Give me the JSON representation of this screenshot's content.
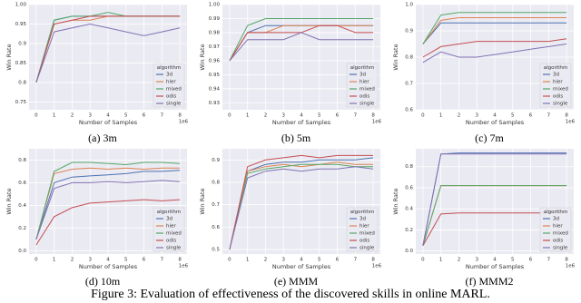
{
  "caption": "Figure 3: Evaluation of effectiveness of the discovered skills in online MARL.",
  "chart_data": [
    {
      "type": "line",
      "caption": "(a) 3m",
      "ylabel": "Win Rate",
      "xlabel": "Number of Samples",
      "x_offset": "1e6",
      "legend_title": "algorithm",
      "grid": true,
      "x": [
        0,
        1,
        2,
        3,
        4,
        5,
        6,
        7,
        8
      ],
      "xlim": [
        -0.4,
        8.4
      ],
      "xticks": [
        0,
        1,
        2,
        3,
        4,
        5,
        6,
        7,
        8
      ],
      "ylim": [
        0.73,
        1.0
      ],
      "yticks": [
        0.75,
        0.8,
        0.85,
        0.9,
        0.95,
        {
          "value": 1.0,
          "label": "1.00"
        }
      ],
      "series": [
        {
          "name": "3d",
          "color": "#4c72b0",
          "values": [
            0.8,
            0.96,
            0.97,
            0.97,
            0.97,
            0.97,
            0.97,
            0.97,
            0.97
          ]
        },
        {
          "name": "hier",
          "color": "#dd8452",
          "values": [
            0.8,
            0.95,
            0.96,
            0.96,
            0.97,
            0.97,
            0.97,
            0.97,
            0.97
          ]
        },
        {
          "name": "mixed",
          "color": "#55a868",
          "values": [
            0.8,
            0.96,
            0.97,
            0.97,
            0.98,
            0.97,
            0.97,
            0.97,
            0.97
          ]
        },
        {
          "name": "odis",
          "color": "#c44e52",
          "values": [
            0.8,
            0.95,
            0.96,
            0.97,
            0.97,
            0.97,
            0.97,
            0.97,
            0.97
          ]
        },
        {
          "name": "single",
          "color": "#8172b3",
          "values": [
            0.8,
            0.93,
            0.94,
            0.95,
            0.94,
            0.93,
            0.92,
            0.93,
            0.94
          ]
        }
      ]
    },
    {
      "type": "line",
      "caption": "(b) 5m",
      "ylabel": "Win Rate",
      "xlabel": "Number of Samples",
      "x_offset": "1e6",
      "legend_title": "algorithm",
      "grid": true,
      "x": [
        0,
        1,
        2,
        3,
        4,
        5,
        6,
        7,
        8
      ],
      "xlim": [
        -0.4,
        8.4
      ],
      "xticks": [
        0,
        1,
        2,
        3,
        4,
        5,
        6,
        7,
        8
      ],
      "ylim": [
        0.925,
        1.0
      ],
      "yticks": [
        0.93,
        0.94,
        0.95,
        0.96,
        0.97,
        0.98,
        0.99,
        {
          "value": 1.0,
          "label": "1.00"
        }
      ],
      "series": [
        {
          "name": "3d",
          "color": "#4c72b0",
          "values": [
            0.96,
            0.98,
            0.985,
            0.985,
            0.985,
            0.985,
            0.985,
            0.985,
            0.985
          ]
        },
        {
          "name": "hier",
          "color": "#dd8452",
          "values": [
            0.96,
            0.98,
            0.98,
            0.985,
            0.985,
            0.985,
            0.985,
            0.985,
            0.985
          ]
        },
        {
          "name": "mixed",
          "color": "#55a868",
          "values": [
            0.96,
            0.985,
            0.99,
            0.99,
            0.99,
            0.99,
            0.99,
            0.99,
            0.99
          ]
        },
        {
          "name": "odis",
          "color": "#c44e52",
          "values": [
            0.96,
            0.98,
            0.98,
            0.98,
            0.98,
            0.985,
            0.985,
            0.98,
            0.98
          ]
        },
        {
          "name": "single",
          "color": "#8172b3",
          "values": [
            0.96,
            0.975,
            0.975,
            0.975,
            0.98,
            0.975,
            0.975,
            0.975,
            0.975
          ]
        }
      ]
    },
    {
      "type": "line",
      "caption": "(c) 7m",
      "ylabel": "Win Rate",
      "xlabel": "Number of Samples",
      "x_offset": "1e6",
      "legend_title": "algorithm",
      "grid": true,
      "x": [
        0,
        1,
        2,
        3,
        4,
        5,
        6,
        7,
        8
      ],
      "xlim": [
        -0.4,
        8.4
      ],
      "xticks": [
        0,
        1,
        2,
        3,
        4,
        5,
        6,
        7,
        8
      ],
      "ylim": [
        0.6,
        1.0
      ],
      "yticks": [
        0.6,
        0.7,
        0.8,
        0.9,
        {
          "value": 1.0,
          "label": "1.0"
        }
      ],
      "series": [
        {
          "name": "3d",
          "color": "#4c72b0",
          "values": [
            0.85,
            0.93,
            0.93,
            0.93,
            0.93,
            0.93,
            0.93,
            0.93,
            0.93
          ]
        },
        {
          "name": "hier",
          "color": "#dd8452",
          "values": [
            0.85,
            0.94,
            0.95,
            0.95,
            0.95,
            0.95,
            0.95,
            0.95,
            0.95
          ]
        },
        {
          "name": "mixed",
          "color": "#55a868",
          "values": [
            0.85,
            0.96,
            0.97,
            0.97,
            0.97,
            0.97,
            0.97,
            0.97,
            0.97
          ]
        },
        {
          "name": "odis",
          "color": "#c44e52",
          "values": [
            0.8,
            0.84,
            0.85,
            0.86,
            0.86,
            0.86,
            0.86,
            0.86,
            0.87
          ]
        },
        {
          "name": "single",
          "color": "#8172b3",
          "values": [
            0.78,
            0.82,
            0.8,
            0.8,
            0.81,
            0.82,
            0.83,
            0.84,
            0.85
          ]
        }
      ]
    },
    {
      "type": "line",
      "caption": "(d) 10m",
      "ylabel": "Win Rate",
      "xlabel": "Number of Samples",
      "x_offset": "1e6",
      "legend_title": "algorithm",
      "grid": true,
      "x": [
        0,
        1,
        2,
        3,
        4,
        5,
        6,
        7,
        8
      ],
      "xlim": [
        -0.4,
        8.4
      ],
      "xticks": [
        0,
        1,
        2,
        3,
        4,
        5,
        6,
        7,
        8
      ],
      "ylim": [
        -0.03,
        0.9
      ],
      "yticks": [
        {
          "value": 0.0,
          "label": "0.0"
        },
        0.2,
        0.4,
        0.6,
        0.8
      ],
      "series": [
        {
          "name": "3d",
          "color": "#4c72b0",
          "values": [
            0.1,
            0.6,
            0.65,
            0.66,
            0.67,
            0.68,
            0.7,
            0.7,
            0.71
          ]
        },
        {
          "name": "hier",
          "color": "#dd8452",
          "values": [
            0.1,
            0.68,
            0.72,
            0.73,
            0.72,
            0.73,
            0.72,
            0.73,
            0.73
          ]
        },
        {
          "name": "mixed",
          "color": "#55a868",
          "values": [
            0.1,
            0.7,
            0.78,
            0.78,
            0.77,
            0.76,
            0.78,
            0.78,
            0.77
          ]
        },
        {
          "name": "odis",
          "color": "#c44e52",
          "values": [
            0.05,
            0.3,
            0.38,
            0.42,
            0.43,
            0.44,
            0.45,
            0.44,
            0.45
          ]
        },
        {
          "name": "single",
          "color": "#8172b3",
          "values": [
            0.1,
            0.55,
            0.6,
            0.6,
            0.61,
            0.6,
            0.61,
            0.62,
            0.61
          ]
        }
      ]
    },
    {
      "type": "line",
      "caption": "(e) MMM",
      "ylabel": "Win Rate",
      "xlabel": "Number of Samples",
      "x_offset": "1e6",
      "legend_title": "algorithm",
      "grid": true,
      "x": [
        0,
        1,
        2,
        3,
        4,
        5,
        6,
        7,
        8
      ],
      "xlim": [
        -0.4,
        8.4
      ],
      "xticks": [
        0,
        1,
        2,
        3,
        4,
        5,
        6,
        7,
        8
      ],
      "ylim": [
        0.48,
        0.95
      ],
      "yticks": [
        0.5,
        0.6,
        0.7,
        0.8,
        0.9
      ],
      "series": [
        {
          "name": "3d",
          "color": "#4c72b0",
          "values": [
            0.5,
            0.85,
            0.88,
            0.89,
            0.89,
            0.9,
            0.9,
            0.9,
            0.91
          ]
        },
        {
          "name": "hier",
          "color": "#dd8452",
          "values": [
            0.5,
            0.85,
            0.87,
            0.88,
            0.87,
            0.88,
            0.89,
            0.88,
            0.88
          ]
        },
        {
          "name": "mixed",
          "color": "#55a868",
          "values": [
            0.5,
            0.84,
            0.86,
            0.87,
            0.88,
            0.88,
            0.88,
            0.87,
            0.87
          ]
        },
        {
          "name": "odis",
          "color": "#c44e52",
          "values": [
            0.5,
            0.87,
            0.9,
            0.91,
            0.92,
            0.91,
            0.92,
            0.92,
            0.92
          ]
        },
        {
          "name": "single",
          "color": "#8172b3",
          "values": [
            0.5,
            0.82,
            0.85,
            0.86,
            0.85,
            0.86,
            0.86,
            0.87,
            0.86
          ]
        }
      ]
    },
    {
      "type": "line",
      "caption": "(f) MMM2",
      "ylabel": "Win Rate",
      "xlabel": "Number of Samples",
      "x_offset": "1e6",
      "legend_title": "algorithm",
      "grid": true,
      "x": [
        0,
        1,
        2,
        3,
        4,
        5,
        6,
        7,
        8
      ],
      "xlim": [
        -0.4,
        8.4
      ],
      "xticks": [
        0,
        1,
        2,
        3,
        4,
        5,
        6,
        7,
        8
      ],
      "ylim": [
        -0.03,
        0.97
      ],
      "yticks": [
        {
          "value": 0.0,
          "label": "0.0"
        },
        0.2,
        0.4,
        0.6,
        0.8
      ],
      "series": [
        {
          "name": "3d",
          "color": "#4c72b0",
          "values": [
            0.05,
            0.92,
            0.93,
            0.93,
            0.93,
            0.93,
            0.93,
            0.93,
            0.93
          ]
        },
        {
          "name": "hier",
          "color": "#dd8452",
          "values": [
            0.05,
            0.62,
            0.62,
            0.62,
            0.62,
            0.62,
            0.62,
            0.62,
            0.62
          ]
        },
        {
          "name": "mixed",
          "color": "#55a868",
          "values": [
            0.05,
            0.62,
            0.62,
            0.62,
            0.62,
            0.62,
            0.62,
            0.62,
            0.62
          ]
        },
        {
          "name": "odis",
          "color": "#c44e52",
          "values": [
            0.05,
            0.35,
            0.36,
            0.36,
            0.36,
            0.36,
            0.36,
            0.36,
            0.36
          ]
        },
        {
          "name": "single",
          "color": "#8172b3",
          "values": [
            0.05,
            0.92,
            0.92,
            0.92,
            0.92,
            0.92,
            0.92,
            0.92,
            0.92
          ]
        }
      ]
    }
  ]
}
